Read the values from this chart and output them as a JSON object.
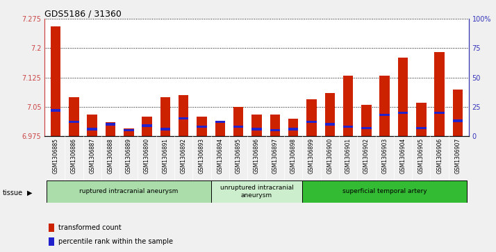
{
  "title": "GDS5186 / 31360",
  "samples": [
    "GSM1306885",
    "GSM1306886",
    "GSM1306887",
    "GSM1306888",
    "GSM1306889",
    "GSM1306890",
    "GSM1306891",
    "GSM1306892",
    "GSM1306893",
    "GSM1306894",
    "GSM1306895",
    "GSM1306896",
    "GSM1306897",
    "GSM1306898",
    "GSM1306899",
    "GSM1306900",
    "GSM1306901",
    "GSM1306902",
    "GSM1306903",
    "GSM1306904",
    "GSM1306905",
    "GSM1306906",
    "GSM1306907"
  ],
  "transformed_count": [
    7.255,
    7.075,
    7.03,
    7.01,
    6.995,
    7.025,
    7.075,
    7.08,
    7.025,
    7.01,
    7.05,
    7.03,
    7.03,
    7.02,
    7.07,
    7.085,
    7.13,
    7.055,
    7.13,
    7.175,
    7.06,
    7.19,
    7.095
  ],
  "percentile_rank": [
    22,
    12,
    6,
    10,
    5,
    9,
    6,
    15,
    8,
    12,
    8,
    6,
    5,
    6,
    12,
    10,
    8,
    7,
    18,
    20,
    7,
    20,
    13
  ],
  "groups": [
    {
      "label": "ruptured intracranial aneurysm",
      "start": 0,
      "end": 9,
      "color": "#aaddaa"
    },
    {
      "label": "unruptured intracranial\naneurysm",
      "start": 9,
      "end": 14,
      "color": "#cceecc"
    },
    {
      "label": "superficial temporal artery",
      "start": 14,
      "end": 23,
      "color": "#33bb33"
    }
  ],
  "ylim_left": [
    6.975,
    7.275
  ],
  "ylim_right": [
    0,
    100
  ],
  "bar_color_red": "#cc2200",
  "bar_color_blue": "#2222cc",
  "bar_width": 0.55,
  "plot_bg": "#ffffff",
  "left_tick_color": "#cc4444",
  "right_tick_color": "#3333bb",
  "title_fontsize": 9,
  "tick_fontsize": 7,
  "xtick_fontsize": 5.5,
  "tissue_label": "tissue",
  "fig_bg": "#f0f0f0",
  "xtick_area_color": "#cccccc",
  "blue_bar_height": 0.006
}
